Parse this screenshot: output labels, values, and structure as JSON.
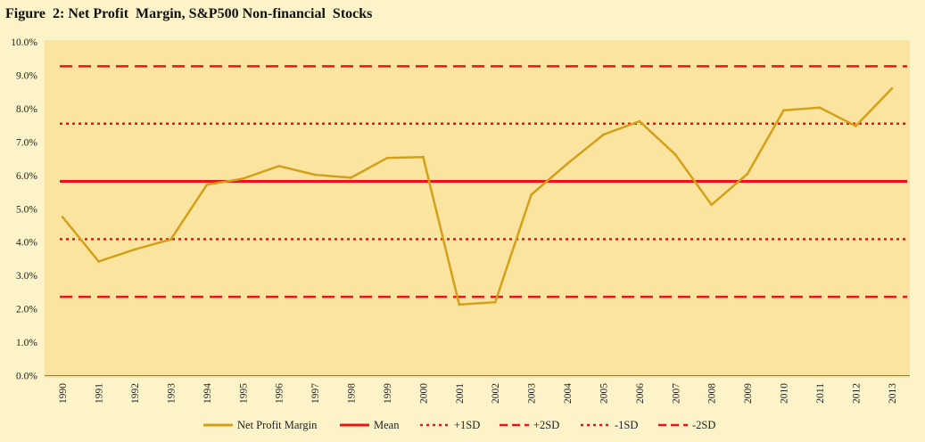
{
  "chart_data": {
    "type": "line",
    "title": "Figure  2: Net Profit  Margin, S&P500 Non-financial  Stocks",
    "colors": {
      "background": "#fdf3c9",
      "plot_background": "#fbe4a0",
      "series": "#d4a017",
      "reference": "#e8141a"
    },
    "x": [
      "1990",
      "1991",
      "1992",
      "1993",
      "1994",
      "1995",
      "1996",
      "1997",
      "1998",
      "1999",
      "2000",
      "2001",
      "2002",
      "2003",
      "2004",
      "2005",
      "2006",
      "2007",
      "2008",
      "2009",
      "2010",
      "2011",
      "2012",
      "2013"
    ],
    "ylim": [
      0,
      10
    ],
    "y_ticks": [
      "0.0%",
      "1.0%",
      "2.0%",
      "3.0%",
      "4.0%",
      "5.0%",
      "6.0%",
      "7.0%",
      "8.0%",
      "9.0%",
      "10.0%"
    ],
    "series": [
      {
        "name": "Net Profit Margin",
        "style": "solid",
        "values": [
          4.75,
          3.42,
          3.78,
          4.08,
          5.72,
          5.9,
          6.28,
          6.02,
          5.93,
          6.52,
          6.55,
          2.13,
          2.2,
          5.42,
          6.35,
          7.22,
          7.62,
          6.62,
          5.12,
          6.05,
          7.95,
          8.03,
          7.48,
          8.6
        ]
      },
      {
        "name": "Mean",
        "style": "solid",
        "value": 5.82
      },
      {
        "name": "+1SD",
        "style": "dotted",
        "value": 7.55
      },
      {
        "name": "+2SD",
        "style": "dashed",
        "value": 9.27
      },
      {
        "name": "-1SD",
        "style": "dotted",
        "value": 4.09
      },
      {
        "name": "-2SD",
        "style": "dashed",
        "value": 2.36
      }
    ],
    "grid": false,
    "legend": "bottom"
  }
}
